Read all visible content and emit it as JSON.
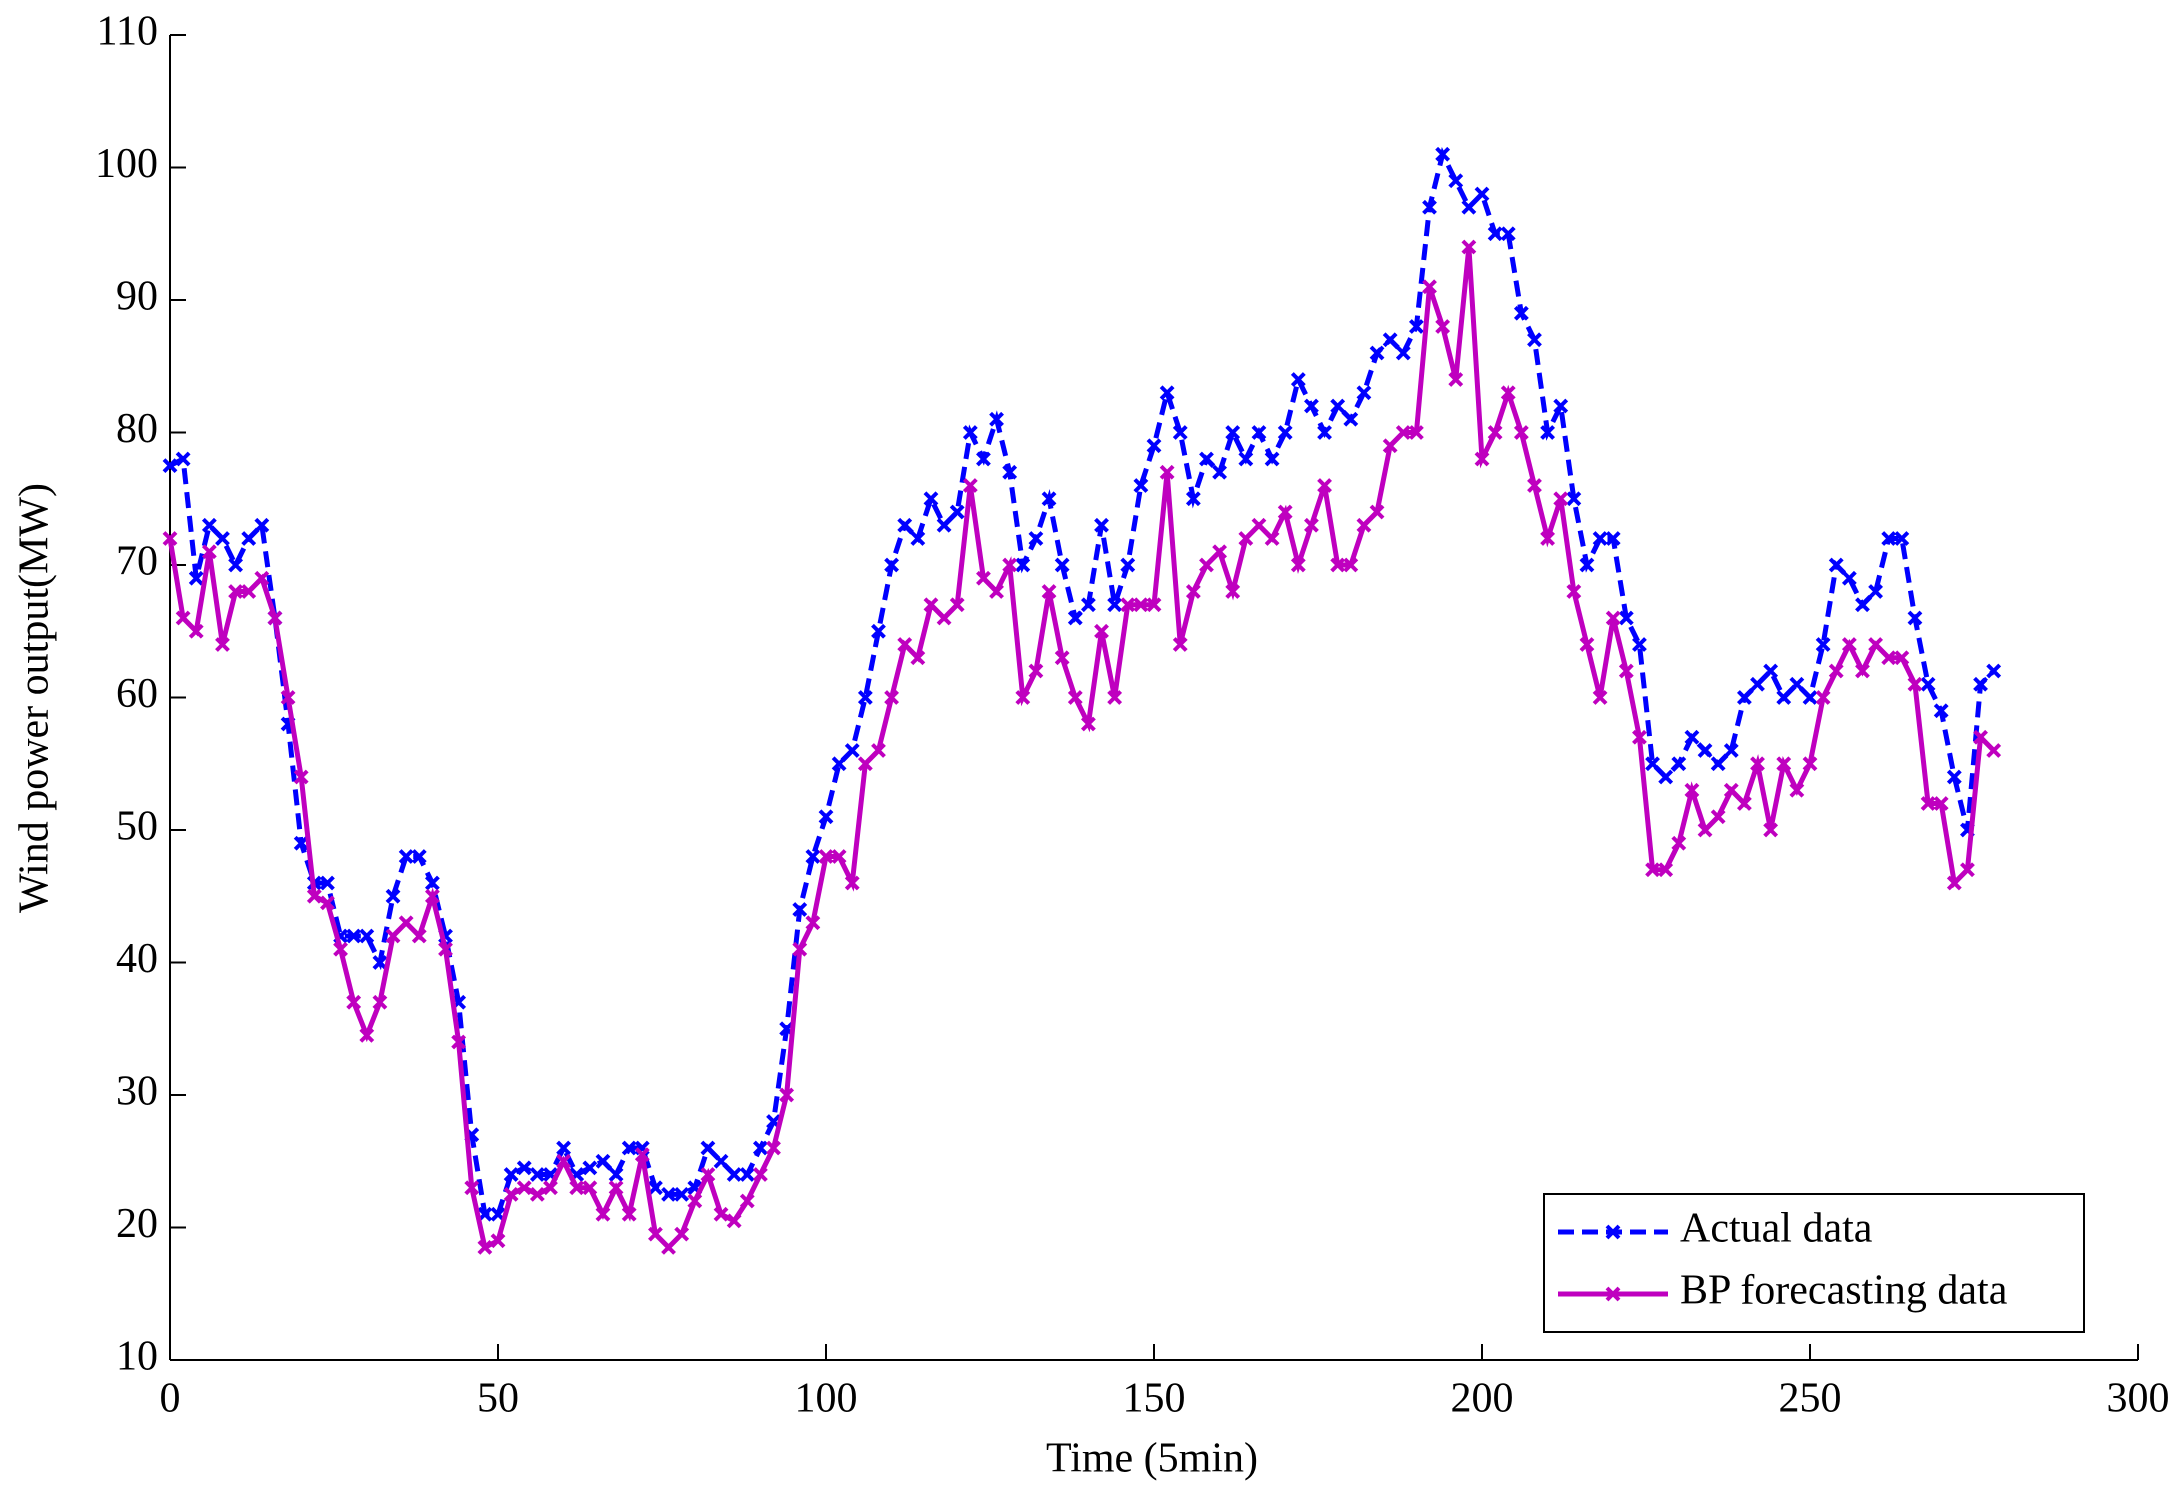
{
  "chart_data": {
    "type": "line",
    "x_label": "Time (5min)",
    "y_label": "Wind power output(MW)",
    "x": [
      0,
      2,
      4,
      6,
      8,
      10,
      12,
      14,
      16,
      18,
      20,
      22,
      24,
      26,
      28,
      30,
      32,
      34,
      36,
      38,
      40,
      42,
      44,
      46,
      48,
      50,
      52,
      54,
      56,
      58,
      60,
      62,
      64,
      66,
      68,
      70,
      72,
      74,
      76,
      78,
      80,
      82,
      84,
      86,
      88,
      90,
      92,
      94,
      96,
      98,
      100,
      102,
      104,
      106,
      108,
      110,
      112,
      114,
      116,
      118,
      120,
      122,
      124,
      126,
      128,
      130,
      132,
      134,
      136,
      138,
      140,
      142,
      144,
      146,
      148,
      150,
      152,
      154,
      156,
      158,
      160,
      162,
      164,
      166,
      168,
      170,
      172,
      174,
      176,
      178,
      180,
      182,
      184,
      186,
      188,
      190,
      192,
      194,
      196,
      198,
      200,
      202,
      204,
      206,
      208,
      210,
      212,
      214,
      216,
      218,
      220,
      222,
      224,
      226,
      228,
      230,
      232,
      234,
      236,
      238,
      240,
      242,
      244,
      246,
      248,
      250,
      252,
      254,
      256,
      258,
      260,
      262,
      264,
      266,
      268,
      270,
      272,
      274,
      276,
      278
    ],
    "series": [
      {
        "name": "Actual data",
        "color": "#0000ff",
        "linestyle": "dashed",
        "values": [
          77.5,
          78,
          69,
          73,
          72,
          70,
          72,
          73,
          66,
          58,
          49,
          46,
          46,
          42,
          42,
          42,
          40,
          45,
          48,
          48,
          46,
          42,
          37,
          27,
          21,
          21,
          24,
          24.5,
          24,
          24,
          26,
          24,
          24.5,
          25,
          24,
          26,
          26,
          23,
          22.5,
          22.5,
          23,
          26,
          25,
          24,
          24,
          26,
          28,
          35,
          44,
          48,
          51,
          55,
          56,
          60,
          65,
          70,
          73,
          72,
          75,
          73,
          74,
          80,
          78,
          81,
          77,
          70,
          72,
          75,
          70,
          66,
          67,
          73,
          67,
          70,
          76,
          79,
          83,
          80,
          75,
          78,
          77,
          80,
          78,
          80,
          78,
          80,
          84,
          82,
          80,
          82,
          81,
          83,
          86,
          87,
          86,
          88,
          97,
          101,
          99,
          97,
          98,
          95,
          95,
          89,
          87,
          80,
          82,
          75,
          70,
          72,
          72,
          66,
          64,
          55,
          54,
          55,
          57,
          56,
          55,
          56,
          60,
          61,
          62,
          60,
          61,
          60,
          64,
          70,
          69,
          67,
          68,
          72,
          72,
          66,
          61,
          59,
          54,
          50,
          61,
          62
        ]
      },
      {
        "name": "BP forecasting data",
        "color": "#bf00bf",
        "linestyle": "solid",
        "values": [
          72,
          66,
          65,
          71,
          64,
          68,
          68,
          69,
          66,
          60,
          54,
          45,
          44.5,
          41,
          37,
          34.5,
          37,
          42,
          43,
          42,
          45,
          41,
          34,
          23,
          18.5,
          19,
          22.5,
          23,
          22.5,
          23,
          25,
          23,
          23,
          21,
          23,
          21,
          25.5,
          19.5,
          18.5,
          19.5,
          22,
          24,
          21,
          20.5,
          22,
          24,
          26,
          30,
          41,
          43,
          48,
          48,
          46,
          55,
          56,
          60,
          64,
          63,
          67,
          66,
          67,
          76,
          69,
          68,
          70,
          60,
          62,
          68,
          63,
          60,
          58,
          65,
          60,
          67,
          67,
          67,
          77,
          64,
          68,
          70,
          71,
          68,
          72,
          73,
          72,
          74,
          70,
          73,
          76,
          70,
          70,
          73,
          74,
          79,
          80,
          80,
          91,
          88,
          84,
          94,
          78,
          80,
          83,
          80,
          76,
          72,
          75,
          68,
          64,
          60,
          66,
          62,
          57,
          47,
          47,
          49,
          53,
          50,
          51,
          53,
          52,
          55,
          50,
          55,
          53,
          55,
          60,
          62,
          64,
          62,
          64,
          63,
          63,
          61,
          52,
          52,
          46,
          47,
          57,
          56
        ]
      }
    ],
    "xlim": [
      0,
      300
    ],
    "xticks": [
      0,
      50,
      100,
      150,
      200,
      250,
      300
    ],
    "ylim": [
      10,
      110
    ],
    "yticks": [
      10,
      20,
      30,
      40,
      50,
      60,
      70,
      80,
      90,
      100,
      110
    ],
    "grid": false,
    "legend": "lower right"
  }
}
